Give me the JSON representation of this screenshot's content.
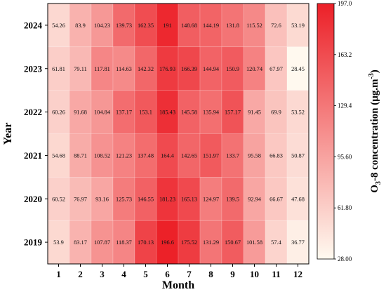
{
  "chart_data": {
    "type": "heatmap",
    "xlabel": "Month",
    "ylabel": "Year",
    "x_categories": [
      "1",
      "2",
      "3",
      "4",
      "5",
      "6",
      "7",
      "8",
      "9",
      "10",
      "11",
      "12"
    ],
    "y_categories": [
      "2024",
      "2023",
      "2022",
      "2021",
      "2020",
      "2019"
    ],
    "values": [
      [
        54.26,
        83.9,
        104.23,
        139.73,
        162.35,
        191,
        148.68,
        144.19,
        131.8,
        115.52,
        72.6,
        53.19
      ],
      [
        61.81,
        79.11,
        117.81,
        114.63,
        142.32,
        176.93,
        166.39,
        144.94,
        150.9,
        120.74,
        67.97,
        28.45
      ],
      [
        60.26,
        91.68,
        104.84,
        137.17,
        153.1,
        185.43,
        145.58,
        135.94,
        157.17,
        91.45,
        69.9,
        53.52
      ],
      [
        54.68,
        88.71,
        108.52,
        121.23,
        137.48,
        164.4,
        142.65,
        151.97,
        133.7,
        95.58,
        66.83,
        50.87
      ],
      [
        60.52,
        76.97,
        93.16,
        125.73,
        146.55,
        181.23,
        165.13,
        124.97,
        139.5,
        92.94,
        66.67,
        47.68
      ],
      [
        53.9,
        83.17,
        107.87,
        118.37,
        170.13,
        196.6,
        175.52,
        131.29,
        150.67,
        101.58,
        57.4,
        36.77
      ]
    ],
    "value_labels": [
      [
        "54.26",
        "83.9",
        "104.23",
        "139.73",
        "162.35",
        "191",
        "148.68",
        "144.19",
        "131.8",
        "115.52",
        "72.6",
        "53.19"
      ],
      [
        "61.81",
        "79.11",
        "117.81",
        "114.63",
        "142.32",
        "176.93",
        "166.39",
        "144.94",
        "150.9",
        "120.74",
        "67.97",
        "28.45"
      ],
      [
        "60.26",
        "91.68",
        "104.84",
        "137.17",
        "153.1",
        "185.43",
        "145.58",
        "135.94",
        "157.17",
        "91.45",
        "69.9",
        "53.52"
      ],
      [
        "54.68",
        "88.71",
        "108.52",
        "121.23",
        "137.48",
        "164.4",
        "142.65",
        "151.97",
        "133.7",
        "95.58",
        "66.83",
        "50.87"
      ],
      [
        "60.52",
        "76.97",
        "93.16",
        "125.73",
        "146.55",
        "181.23",
        "165.13",
        "124.97",
        "139.5",
        "92.94",
        "66.67",
        "47.68"
      ],
      [
        "53.9",
        "83.17",
        "107.87",
        "118.37",
        "170.13",
        "196.6",
        "175.52",
        "131.29",
        "150.67",
        "101.58",
        "57.4",
        "36.77"
      ]
    ],
    "colorbar": {
      "label_main": "O",
      "label_sub": "3",
      "label_rest": "-8  concentration (μg.m",
      "label_sup": "-3",
      "label_end": ")",
      "min": 28.0,
      "max": 197.0,
      "ticks": [
        197.0,
        163.2,
        129.4,
        95.6,
        61.8,
        28.0
      ],
      "tick_labels": [
        "197.0",
        "163.2",
        "129.4",
        "95.60",
        "61.80",
        "28.00"
      ],
      "color_low": "#fffaf0",
      "color_high": "#ec2028"
    },
    "grid": true
  }
}
